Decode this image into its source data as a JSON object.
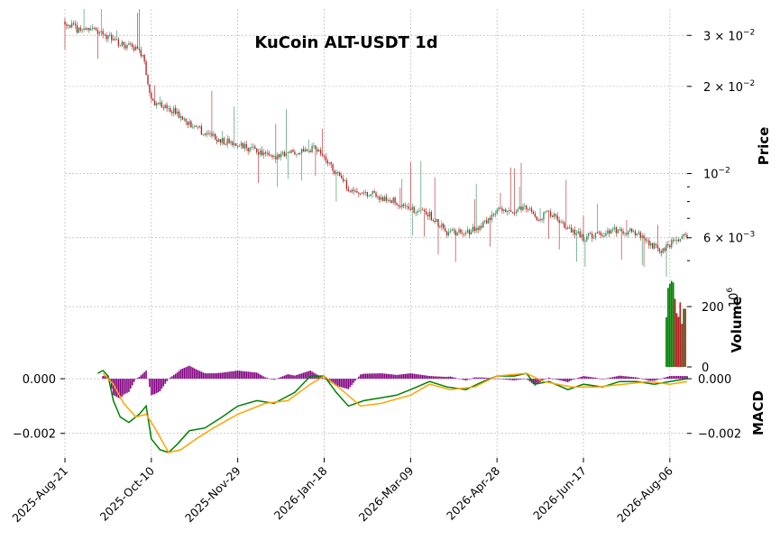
{
  "chart_data": {
    "type": "candlestick",
    "title": "KuCoin ALT-USDT 1d",
    "x_ticks": [
      "2025-Aug-21",
      "2025-Oct-10",
      "2025-Nov-29",
      "2026-Jan-18",
      "2026-Mar-09",
      "2026-Apr-28",
      "2026-Jun-17",
      "2026-Aug-06"
    ],
    "x_range": [
      "2025-08-21",
      "2026-08-16"
    ],
    "price_panel": {
      "ylabel": "Price",
      "scale": "log",
      "ylim": [
        0.0044,
        0.037
      ],
      "tick_labels": [
        {
          "value": 0.03,
          "mantissa": "3",
          "exponent": "−2"
        },
        {
          "value": 0.02,
          "mantissa": "2",
          "exponent": "−2"
        },
        {
          "value": 0.01,
          "mantissa": "",
          "exponent": "−2"
        },
        {
          "value": 0.006,
          "mantissa": "6",
          "exponent": "−3"
        }
      ],
      "minor_ticks": [
        0.009,
        0.008,
        0.007,
        0.005
      ],
      "up_color": "#2e8b57",
      "down_color": "#b22222",
      "close_anchors": [
        [
          "2025-08-21",
          0.0335
        ],
        [
          "2025-08-28",
          0.0315
        ],
        [
          "2025-09-05",
          0.0318
        ],
        [
          "2025-09-12",
          0.0305
        ],
        [
          "2025-09-20",
          0.0285
        ],
        [
          "2025-09-28",
          0.0275
        ],
        [
          "2025-10-05",
          0.026
        ],
        [
          "2025-10-10",
          0.0178
        ],
        [
          "2025-10-20",
          0.017
        ],
        [
          "2025-10-30",
          0.0152
        ],
        [
          "2025-11-10",
          0.0138
        ],
        [
          "2025-11-20",
          0.013
        ],
        [
          "2025-11-29",
          0.0125
        ],
        [
          "2025-12-10",
          0.012
        ],
        [
          "2025-12-20",
          0.0112
        ],
        [
          "2025-12-28",
          0.0118
        ],
        [
          "2026-01-05",
          0.012
        ],
        [
          "2026-01-12",
          0.0122
        ],
        [
          "2026-01-18",
          0.0115
        ],
        [
          "2026-01-25",
          0.01
        ],
        [
          "2026-02-02",
          0.0088
        ],
        [
          "2026-02-15",
          0.0085
        ],
        [
          "2026-02-28",
          0.008
        ],
        [
          "2026-03-09",
          0.0075
        ],
        [
          "2026-03-20",
          0.0072
        ],
        [
          "2026-03-30",
          0.0063
        ],
        [
          "2026-04-08",
          0.0062
        ],
        [
          "2026-04-18",
          0.0065
        ],
        [
          "2026-04-28",
          0.0074
        ],
        [
          "2026-05-08",
          0.0075
        ],
        [
          "2026-05-14",
          0.0078
        ],
        [
          "2026-05-22",
          0.007
        ],
        [
          "2026-05-28",
          0.0073
        ],
        [
          "2026-06-08",
          0.0065
        ],
        [
          "2026-06-17",
          0.006
        ],
        [
          "2026-06-28",
          0.0062
        ],
        [
          "2026-07-08",
          0.0064
        ],
        [
          "2026-07-18",
          0.0062
        ],
        [
          "2026-07-26",
          0.0057
        ],
        [
          "2026-08-01",
          0.0054
        ],
        [
          "2026-08-06",
          0.0057
        ],
        [
          "2026-08-12",
          0.0059
        ],
        [
          "2026-08-16",
          0.0061
        ]
      ]
    },
    "volume_panel": {
      "ylabel": "Volume",
      "multiplier": "10",
      "multiplier_exp": "6",
      "ylim": [
        0,
        290
      ],
      "tick_labels": [
        {
          "value": 200,
          "label": "200"
        },
        {
          "value": 0,
          "label": "0"
        }
      ],
      "bars": [
        {
          "date": "2026-08-04",
          "value": 165,
          "color": "#008000"
        },
        {
          "date": "2026-08-05",
          "value": 262,
          "color": "#008000"
        },
        {
          "date": "2026-08-06",
          "value": 276,
          "color": "#008000"
        },
        {
          "date": "2026-08-07",
          "value": 285,
          "color": "#008000"
        },
        {
          "date": "2026-08-08",
          "value": 280,
          "color": "#008000"
        },
        {
          "date": "2026-08-09",
          "value": 226,
          "color": "#b22222"
        },
        {
          "date": "2026-08-10",
          "value": 178,
          "color": "#b22222"
        },
        {
          "date": "2026-08-11",
          "value": 166,
          "color": "#b22222"
        },
        {
          "date": "2026-08-12",
          "value": 214,
          "color": "#b22222"
        },
        {
          "date": "2026-08-13",
          "value": 143,
          "color": "#b22222"
        },
        {
          "date": "2026-08-14",
          "value": 193,
          "color": "#008000"
        },
        {
          "date": "2026-08-15",
          "value": 193,
          "color": "#b22222"
        }
      ]
    },
    "macd_panel": {
      "ylabel": "MACD",
      "ylim": [
        -0.0029,
        0.0004
      ],
      "tick_labels": [
        {
          "value": 0.0,
          "label": "0.000"
        },
        {
          "value": -0.002,
          "label": "−0.002"
        }
      ],
      "series": [
        {
          "key": "macd",
          "color": "#008000",
          "points": [
            [
              "2025-09-09",
              0.0002
            ],
            [
              "2025-09-12",
              0.0003
            ],
            [
              "2025-09-15",
              0.0001
            ],
            [
              "2025-09-18",
              -0.0008
            ],
            [
              "2025-09-22",
              -0.0014
            ],
            [
              "2025-09-27",
              -0.0016
            ],
            [
              "2025-10-03",
              -0.0013
            ],
            [
              "2025-10-07",
              -0.001
            ],
            [
              "2025-10-10",
              -0.0022
            ],
            [
              "2025-10-15",
              -0.0026
            ],
            [
              "2025-10-20",
              -0.0027
            ],
            [
              "2025-10-25",
              -0.0024
            ],
            [
              "2025-11-01",
              -0.0019
            ],
            [
              "2025-11-10",
              -0.0018
            ],
            [
              "2025-11-20",
              -0.0014
            ],
            [
              "2025-11-29",
              -0.001
            ],
            [
              "2025-12-10",
              -0.0008
            ],
            [
              "2025-12-20",
              -0.0009
            ],
            [
              "2026-01-01",
              -0.0005
            ],
            [
              "2026-01-10",
              0.0001
            ],
            [
              "2026-01-18",
              0.0001
            ],
            [
              "2026-01-25",
              -0.0005
            ],
            [
              "2026-02-01",
              -0.001
            ],
            [
              "2026-02-10",
              -0.0008
            ],
            [
              "2026-02-20",
              -0.0007
            ],
            [
              "2026-03-01",
              -0.0006
            ],
            [
              "2026-03-09",
              -0.0004
            ],
            [
              "2026-03-20",
              -0.0001
            ],
            [
              "2026-03-30",
              -0.0003
            ],
            [
              "2026-04-10",
              -0.0004
            ],
            [
              "2026-04-20",
              -0.0001
            ],
            [
              "2026-04-28",
              0.0001
            ],
            [
              "2026-05-08",
              0.0001
            ],
            [
              "2026-05-15",
              0.0002
            ],
            [
              "2026-05-20",
              -0.0002
            ],
            [
              "2026-05-28",
              -0.0001
            ],
            [
              "2026-06-08",
              -0.0004
            ],
            [
              "2026-06-17",
              -0.0002
            ],
            [
              "2026-06-28",
              -0.0003
            ],
            [
              "2026-07-08",
              -0.0001
            ],
            [
              "2026-07-18",
              -0.0001
            ],
            [
              "2026-07-28",
              -0.0002
            ],
            [
              "2026-08-06",
              -0.0001
            ],
            [
              "2026-08-16",
              0.0
            ]
          ]
        },
        {
          "key": "signal",
          "color": "#ffa500",
          "points": [
            [
              "2025-09-12",
              0.0002
            ],
            [
              "2025-09-18",
              -0.0002
            ],
            [
              "2025-09-24",
              -0.0009
            ],
            [
              "2025-10-01",
              -0.0014
            ],
            [
              "2025-10-07",
              -0.0013
            ],
            [
              "2025-10-12",
              -0.0018
            ],
            [
              "2025-10-20",
              -0.0027
            ],
            [
              "2025-10-27",
              -0.0026
            ],
            [
              "2025-11-05",
              -0.0022
            ],
            [
              "2025-11-15",
              -0.0018
            ],
            [
              "2025-11-29",
              -0.0013
            ],
            [
              "2025-12-15",
              -0.0009
            ],
            [
              "2025-12-28",
              -0.0008
            ],
            [
              "2026-01-10",
              -0.0002
            ],
            [
              "2026-01-18",
              0.0001
            ],
            [
              "2026-01-28",
              -0.0004
            ],
            [
              "2026-02-08",
              -0.001
            ],
            [
              "2026-02-20",
              -0.0009
            ],
            [
              "2026-03-09",
              -0.0006
            ],
            [
              "2026-03-20",
              -0.0002
            ],
            [
              "2026-04-01",
              -0.0004
            ],
            [
              "2026-04-15",
              -0.0003
            ],
            [
              "2026-04-28",
              0.0001
            ],
            [
              "2026-05-15",
              0.0002
            ],
            [
              "2026-05-25",
              -0.0001
            ],
            [
              "2026-06-10",
              -0.0003
            ],
            [
              "2026-06-25",
              -0.0003
            ],
            [
              "2026-07-10",
              -0.0002
            ],
            [
              "2026-07-25",
              -0.0001
            ],
            [
              "2026-08-06",
              -0.0002
            ],
            [
              "2026-08-16",
              -0.0001
            ]
          ]
        }
      ],
      "histogram_color": "#800080"
    },
    "grid": true
  }
}
